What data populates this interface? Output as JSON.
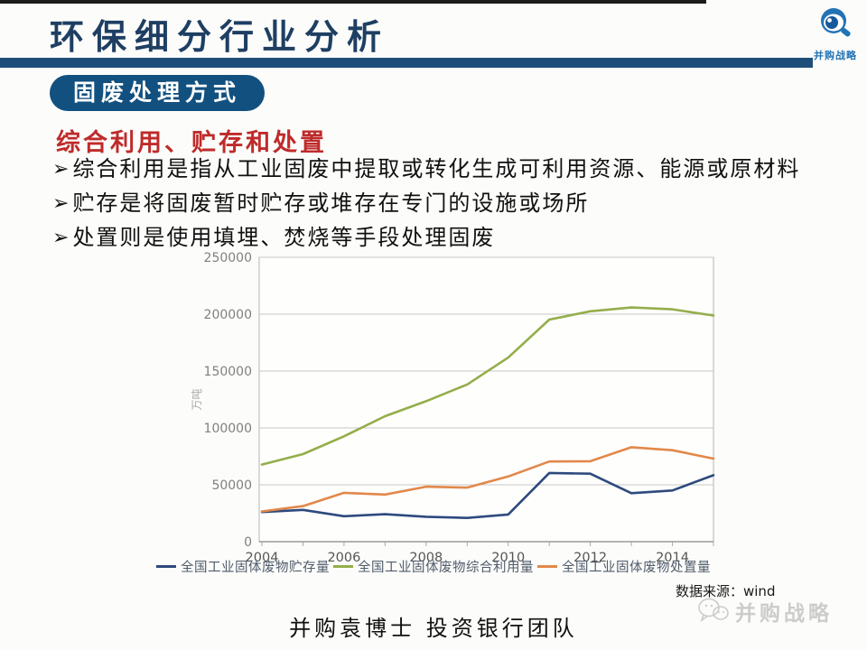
{
  "slide": {
    "title": "环保细分行业分析",
    "badge": "固废处理方式",
    "section_heading": "综合利用、贮存和处置",
    "bullet_marker": "➢",
    "bullets": [
      "综合利用是指从工业固废中提取或转化生成可利用资源、能源或原材料",
      "贮存是将固废暂时贮存或堆存在专门的设施或场所",
      "处置则是使用填埋、焚烧等手段处理固废"
    ],
    "data_source": "数据来源：wind",
    "footer": "并购袁博士 投资银行团队",
    "logo_text": "并购战略",
    "watermark_text": "并购战略"
  },
  "colors": {
    "title_navy": "#1e3f63",
    "rule_navy": "#1f4e79",
    "badge_navy": "#12507f",
    "heading_red": "#be2b2b",
    "logo_blue": "#2173b4",
    "axis_gray": "#a8a8a8",
    "grid_gray": "#c8c8c8",
    "tick_label_gray": "#808080",
    "watermark_gray": "#cccccc"
  },
  "chart_data": {
    "type": "line",
    "x": [
      2004,
      2005,
      2006,
      2007,
      2008,
      2009,
      2010,
      2011,
      2012,
      2013,
      2014,
      2015
    ],
    "x_tick_labels": [
      "2004",
      "2006",
      "2008",
      "2010",
      "2012",
      "2014"
    ],
    "y_ticks": [
      0,
      50000,
      100000,
      150000,
      200000,
      250000
    ],
    "ylim": [
      0,
      250000
    ],
    "ylabel": "万吨",
    "grid": true,
    "legend_position": "bottom",
    "series": [
      {
        "name": "全国工业固体废物贮存量",
        "color": "#2e4a7d",
        "values": [
          26000,
          27900,
          22400,
          24100,
          21900,
          20900,
          23900,
          60400,
          59800,
          42600,
          45000,
          58400
        ]
      },
      {
        "name": "全国工业固体废物综合利用量",
        "color": "#94ae4a",
        "values": [
          67800,
          77000,
          92600,
          110300,
          123500,
          138200,
          161800,
          195200,
          202500,
          205900,
          204300,
          198800
        ]
      },
      {
        "name": "全国工业固体废物处置量",
        "color": "#e2884a",
        "values": [
          26600,
          31300,
          42900,
          41400,
          48300,
          47500,
          57300,
          70500,
          70700,
          83000,
          80400,
          73000
        ]
      }
    ]
  }
}
